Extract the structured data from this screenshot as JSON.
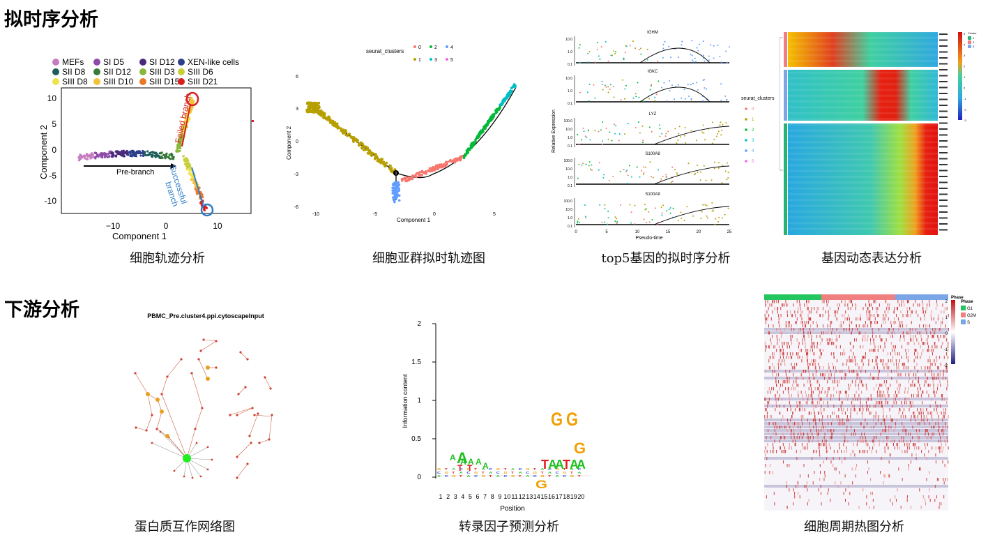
{
  "sections": {
    "top": "拟时序分析",
    "bottom": "下游分析"
  },
  "captions": {
    "p1": "细胞轨迹分析",
    "p2": "细胞亚群拟时轨迹图",
    "p3": "top5基因的拟时序分析",
    "p4": "基因动态表达分析",
    "p5": "蛋白质互作网络图",
    "p6": "转录因子预测分析",
    "p7": "细胞周期热图分析"
  },
  "panel1": {
    "legend": [
      {
        "label": "MEFs",
        "color": "#c77cc0"
      },
      {
        "label": "SI D5",
        "color": "#8e4aa8"
      },
      {
        "label": "SI D12",
        "color": "#4b2a7a"
      },
      {
        "label": "XEN-like cells",
        "color": "#2c3f8a"
      },
      {
        "label": "SII D8",
        "color": "#1f5c5c"
      },
      {
        "label": "SII D12",
        "color": "#3a7a3a"
      },
      {
        "label": "SIII D3",
        "color": "#8ab63a"
      },
      {
        "label": "SIII D6",
        "color": "#c6cf3a"
      },
      {
        "label": "SIII D8",
        "color": "#efe24a"
      },
      {
        "label": "SIII D10",
        "color": "#f2c23a"
      },
      {
        "label": "SIII D15",
        "color": "#e8782a"
      },
      {
        "label": "SIII D21",
        "color": "#d8201e"
      }
    ],
    "xlabel": "Component 1",
    "ylabel": "Component 2",
    "xticks": [
      "−10",
      "0",
      "10"
    ],
    "yticks": [
      "10",
      "5",
      "0",
      "-5",
      "-10"
    ],
    "annotations": {
      "pre": "Pre-branch",
      "failed": "Failed branch",
      "success1": "Successful",
      "success2": "branch"
    }
  },
  "panel2": {
    "legend_title": "seurat_clusters",
    "legend": [
      {
        "label": "0",
        "color": "#f8766d"
      },
      {
        "label": "1",
        "color": "#b79f00"
      },
      {
        "label": "2",
        "color": "#00ba38"
      },
      {
        "label": "3",
        "color": "#00bfc4"
      },
      {
        "label": "4",
        "color": "#619cff"
      },
      {
        "label": "5",
        "color": "#f564e3"
      }
    ],
    "xlabel": "Component 1",
    "ylabel": "Component 2",
    "xticks": [
      "-10",
      "-5",
      "0",
      "5"
    ],
    "yticks": [
      "6",
      "3",
      "0",
      "-3",
      "-6"
    ],
    "node": "1"
  },
  "panel3": {
    "genes": [
      "IGHM",
      "IGKC",
      "LYZ",
      "S100A8",
      "S100A9"
    ],
    "yticks": [
      "10.0",
      "1.0",
      "0.1"
    ],
    "yticks_big": [
      "100.0",
      "10.0",
      "1.0",
      "0.1"
    ],
    "xticks": [
      "0",
      "5",
      "10",
      "15",
      "20",
      "25"
    ],
    "xlabel": "Pseudo-time",
    "ylabel": "Relative Expression",
    "legend_title": "seurat_clusters",
    "legend": [
      {
        "label": "0",
        "color": "#f8766d"
      },
      {
        "label": "1",
        "color": "#b79f00"
      },
      {
        "label": "2",
        "color": "#00ba38"
      },
      {
        "label": "3",
        "color": "#00bfc4"
      },
      {
        "label": "4",
        "color": "#619cff"
      },
      {
        "label": "5",
        "color": "#f564e3"
      }
    ]
  },
  "panel4": {
    "legend_title": "Cluster",
    "legend": [
      "1",
      "2",
      "3"
    ],
    "scale": [
      "5",
      "4",
      "3",
      "2",
      "1",
      "0",
      "-1",
      "-2",
      "-3"
    ]
  },
  "panel5": {
    "title": "PBMC_Pre.cluster4.ppi.cytoscapeInput"
  },
  "panel6": {
    "ylabel": "Information content",
    "xlabel": "Position",
    "yticks": [
      "2",
      "1.5",
      "1",
      "0.5",
      "0"
    ],
    "xticks": [
      "1",
      "2",
      "3",
      "4",
      "5",
      "6",
      "7",
      "8",
      "9",
      "10",
      "11",
      "12",
      "13",
      "14",
      "15",
      "16",
      "17",
      "18",
      "19",
      "20"
    ]
  },
  "panel7": {
    "legend_title": "Phase",
    "phase_title": "Phase",
    "phases": [
      {
        "label": "G1",
        "color": "#22c55e"
      },
      {
        "label": "G2M",
        "color": "#f08080"
      },
      {
        "label": "S",
        "color": "#7aa6e8"
      }
    ],
    "scale": [
      "2",
      "1",
      "0",
      "-1",
      "-2"
    ]
  }
}
